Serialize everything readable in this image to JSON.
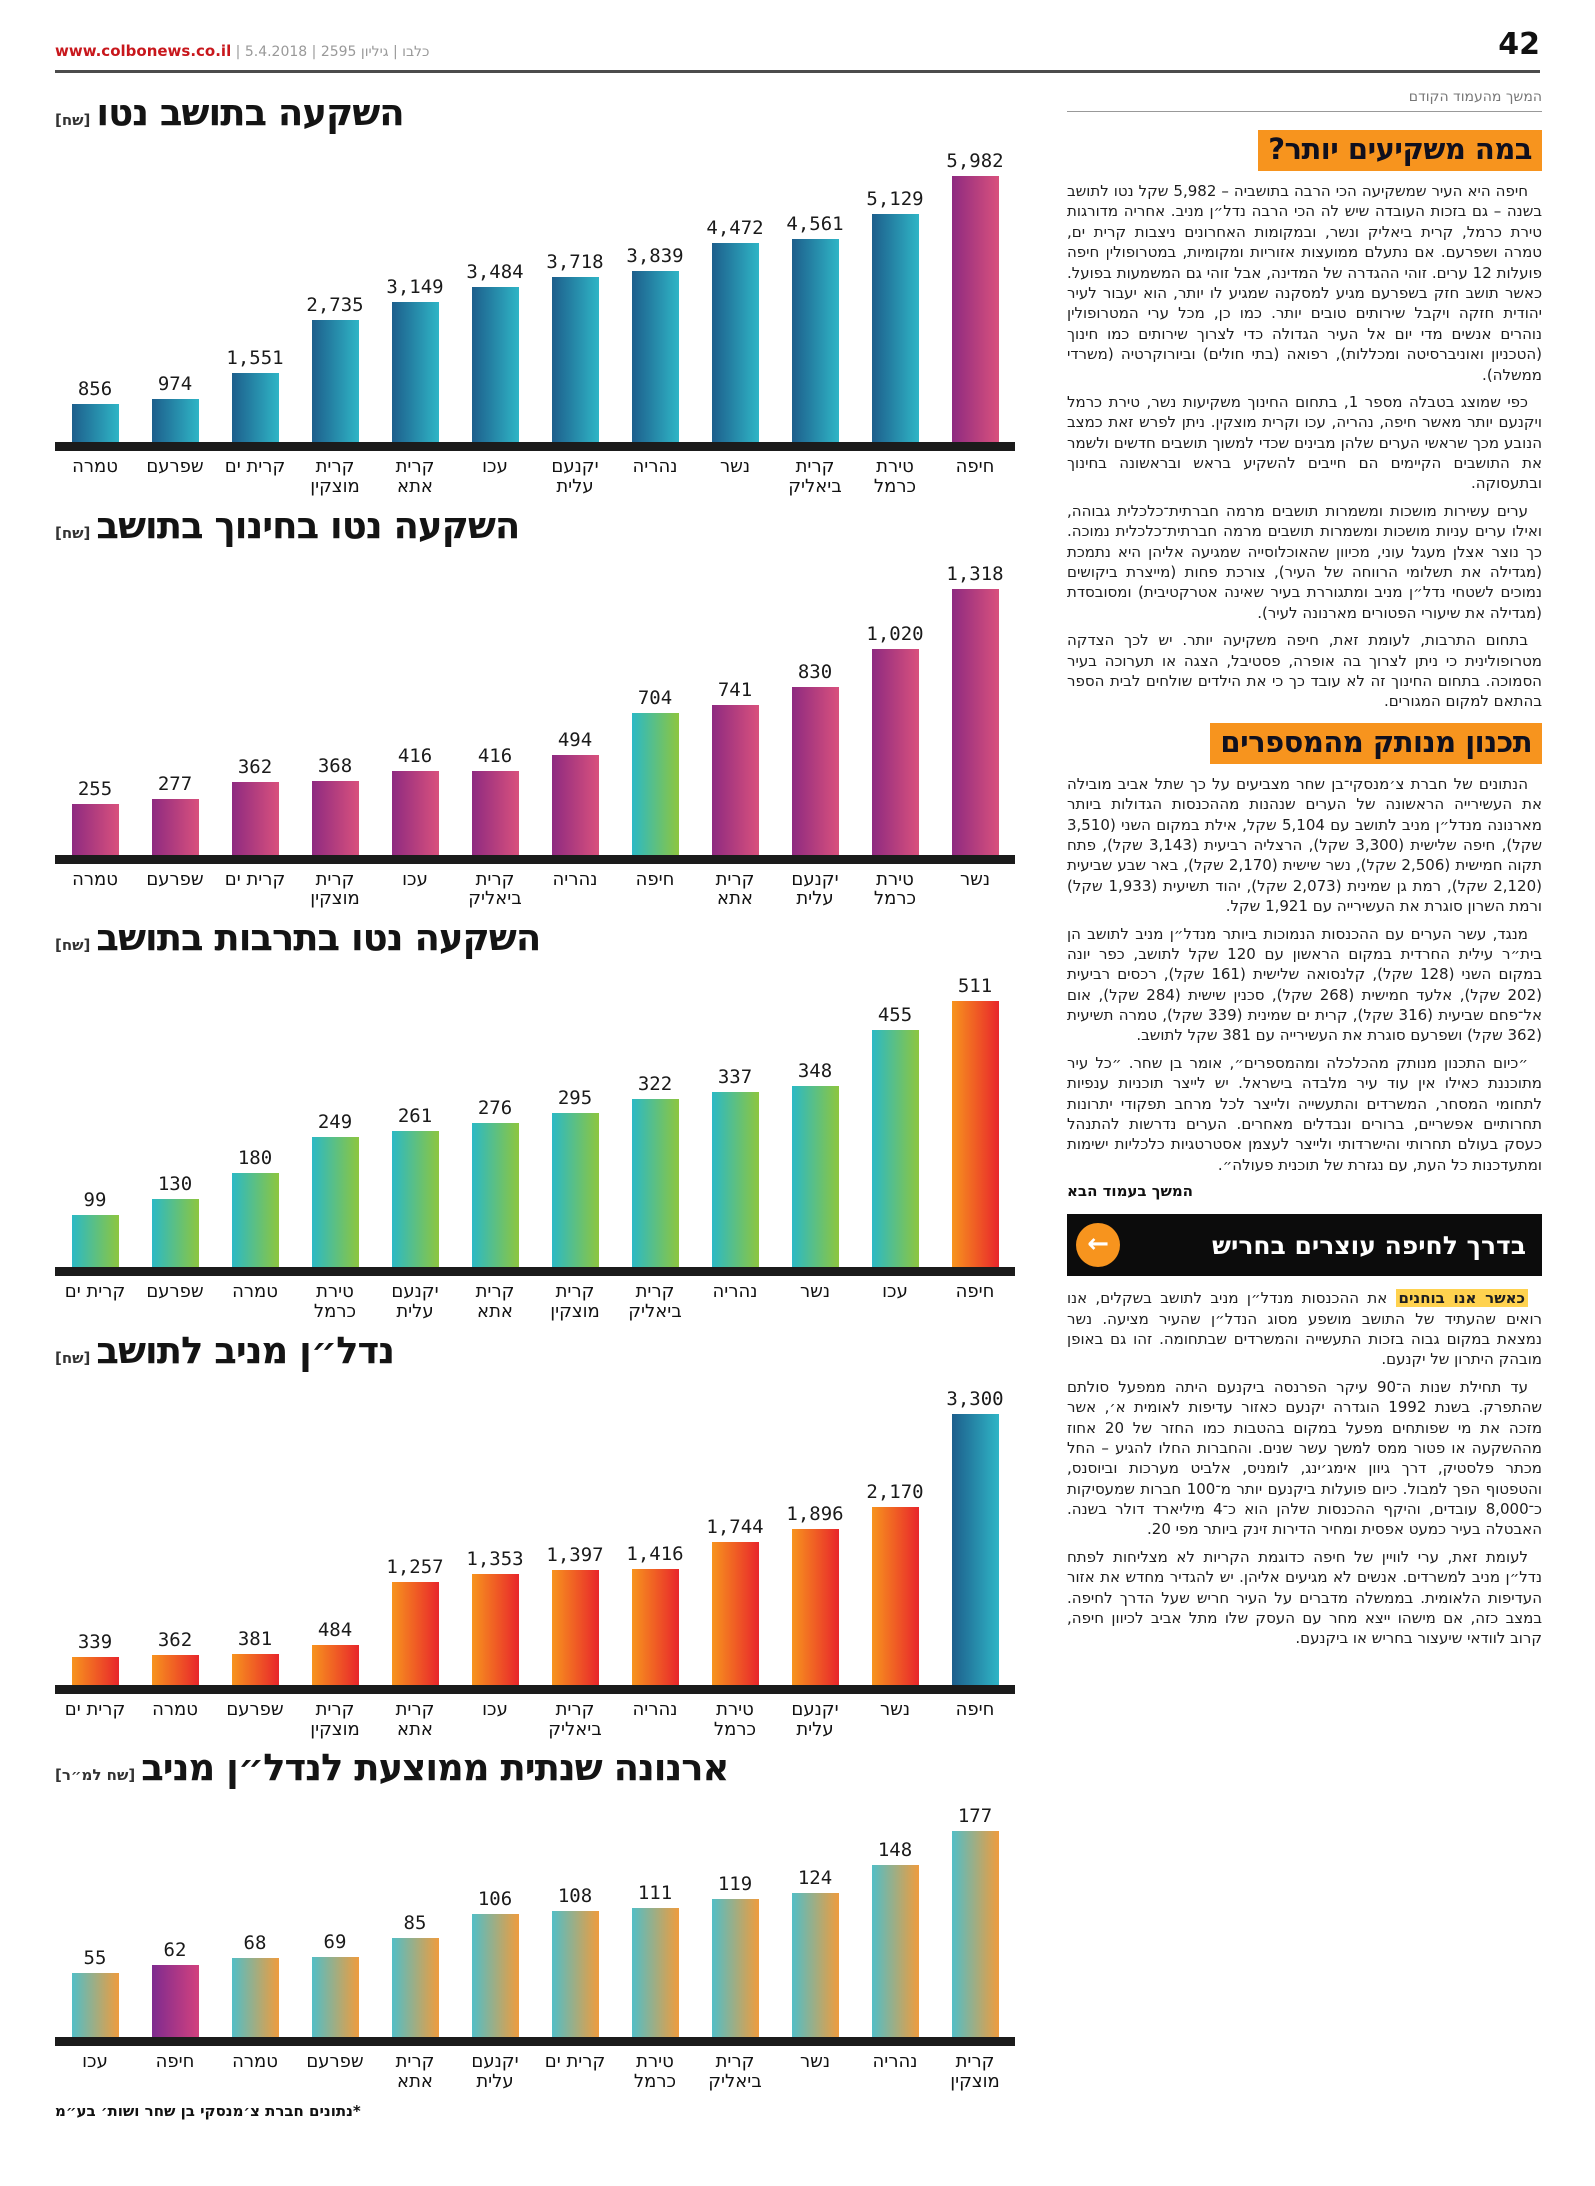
{
  "page": {
    "number": "42",
    "url": "www.colbonews.co.il",
    "meta": " | כלבו | גיליון 2595 | 5.4.2018"
  },
  "colors": {
    "teal": [
      "#1d5e8c",
      "#2fb5c6"
    ],
    "magenta": [
      "#8e2a80",
      "#d9517d"
    ],
    "tealgreen": [
      "#2bb9c5",
      "#8dc63f"
    ],
    "orangered": [
      "#f7941e",
      "#e8262b"
    ],
    "tealorange": [
      "#52bec6",
      "#ef9c3e"
    ],
    "purplepink": [
      "#7e2b8f",
      "#d2417e"
    ],
    "headline_bg": "#f7941e",
    "lead_highlight": "#ffd24f"
  },
  "chart_data": [
    {
      "id": "net-investment-per-resident",
      "type": "bar",
      "title": "השקעה בתושב נטו",
      "unit": "[שח]",
      "categories": [
        "טמרה",
        "שפרעם",
        "קרית ים",
        "קרית מוצקין",
        "קרית אתא",
        "עכו",
        "יקנעם עלית",
        "נהריה",
        "נשר",
        "קרית ביאליק",
        "טירת כרמל",
        "חיפה"
      ],
      "values": [
        856,
        974,
        1551,
        2735,
        3149,
        3484,
        3718,
        3839,
        4472,
        4561,
        5129,
        5982
      ],
      "value_labels": [
        "856",
        "974",
        "1,551",
        "2,735",
        "3,149",
        "3,484",
        "3,718",
        "3,839",
        "4,472",
        "4,561",
        "5,129",
        "5,982"
      ],
      "theme": "teal",
      "highlight_index": 11,
      "highlight_theme": "magenta",
      "ylim": [
        0,
        5982
      ],
      "grid": false,
      "legend": "none"
    },
    {
      "id": "net-education-investment-per-resident",
      "type": "bar",
      "title": "השקעה נטו בחינוך בתושב",
      "unit": "[שח]",
      "categories": [
        "טמרה",
        "שפרעם",
        "קרית ים",
        "קרית מוצקין",
        "עכו",
        "קרית ביאליק",
        "נהריה",
        "חיפה",
        "קרית אתא",
        "יקנעם עלית",
        "טירת כרמל",
        "נשר"
      ],
      "values": [
        255,
        277,
        362,
        368,
        416,
        416,
        494,
        704,
        741,
        830,
        1020,
        1318
      ],
      "value_labels": [
        "255",
        "277",
        "362",
        "368",
        "416",
        "416",
        "494",
        "704",
        "741",
        "830",
        "1,020",
        "1,318"
      ],
      "theme": "magenta",
      "highlight_index": 7,
      "highlight_theme": "tealgreen",
      "ylim": [
        0,
        1318
      ],
      "grid": false,
      "legend": "none"
    },
    {
      "id": "net-culture-investment-per-resident",
      "type": "bar",
      "title": "השקעה נטו בתרבות בתושב",
      "unit": "[שח]",
      "categories": [
        "קרית ים",
        "שפרעם",
        "טמרה",
        "טירת כרמל",
        "יקנעם עלית",
        "קרית אתא",
        "קרית מוצקין",
        "קרית ביאליק",
        "נהריה",
        "נשר",
        "עכו",
        "חיפה"
      ],
      "values": [
        99,
        130,
        180,
        249,
        261,
        276,
        295,
        322,
        337,
        348,
        455,
        511
      ],
      "value_labels": [
        "99",
        "130",
        "180",
        "249",
        "261",
        "276",
        "295",
        "322",
        "337",
        "348",
        "455",
        "511"
      ],
      "theme": "tealgreen",
      "highlight_index": 11,
      "highlight_theme": "orangered",
      "ylim": [
        0,
        511
      ],
      "grid": false,
      "legend": "none"
    },
    {
      "id": "income-producing-real-estate-per-resident",
      "type": "bar",
      "title": "נדל״ן מניב לתושב",
      "unit": "[שח]",
      "categories": [
        "קרית ים",
        "טמרה",
        "שפרעם",
        "קרית מוצקין",
        "קרית אתא",
        "עכו",
        "קרית ביאליק",
        "נהריה",
        "טירת כרמל",
        "יקנעם עלית",
        "נשר",
        "חיפה"
      ],
      "values": [
        339,
        362,
        381,
        484,
        1257,
        1353,
        1397,
        1416,
        1744,
        1896,
        2170,
        3300
      ],
      "value_labels": [
        "339",
        "362",
        "381",
        "484",
        "1,257",
        "1,353",
        "1,397",
        "1,416",
        "1,744",
        "1,896",
        "2,170",
        "3,300"
      ],
      "theme": "orangered",
      "highlight_index": 11,
      "highlight_theme": "teal",
      "ylim": [
        0,
        3300
      ],
      "grid": false,
      "legend": "none"
    },
    {
      "id": "avg-annual-arnona-income-real-estate",
      "type": "bar",
      "title": "ארנונה שנתית ממוצעת לנדל״ן מניב",
      "unit": "[שח למ״ר]",
      "categories": [
        "עכו",
        "חיפה",
        "טמרה",
        "שפרעם",
        "קרית אתא",
        "יקנעם עלית",
        "קרית ים",
        "טירת כרמל",
        "קרית ביאליק",
        "נשר",
        "נהריה",
        "קרית מוצקין"
      ],
      "values": [
        55,
        62,
        68,
        69,
        85,
        106,
        108,
        111,
        119,
        124,
        148,
        177
      ],
      "value_labels": [
        "55",
        "62",
        "68",
        "69",
        "85",
        "106",
        "108",
        "111",
        "119",
        "124",
        "148",
        "177"
      ],
      "theme": "tealorange",
      "highlight_index": 1,
      "highlight_theme": "purplepink",
      "ylim": [
        0,
        177
      ],
      "grid": false,
      "legend": "none"
    }
  ],
  "footnote": "*נתונים חברת צ׳מנסקי בן שחר ושות׳ בע״מ",
  "article": {
    "continued": "המשך מהעמוד הקודם",
    "s1": {
      "headline": "במה משקיעים יותר?",
      "paragraphs": [
        "חיפה היא העיר שמשקיעה הכי הרבה בתושביה – 5,982 שקל נטו לתושב בשנה – גם בזכות העובדה שיש לה הכי הרבה נדל״ן מניב. אחריה מדורגות טירת כרמל, קרית ביאליק ונשר, ובמקומות האחרונים ניצבות קרית ים, טמרה ושפרעם. אם נתעלם ממועצות אזוריות ומקומיות, במטרופולין חיפה פועלות 12 ערים. זוהי ההגדרה של המדינה, אבל זוהי גם המשמעות בפועל. כאשר תושב חזק בשפרעם מגיע למסקנה שמגיע לו יותר, הוא יעבור לעיר יהודית חזקה ויקבל שירותים טובים יותר. כמו כן, מכל ערי המטרופולין נוהרים אנשים מדי יום אל העיר הגדולה כדי לצרוך שירותים כמו חינוך (הטכניון ואוניברסיטה ומכללות), רפואה (בתי חולים) וביורוקרטיה (משרדי ממשלה).",
        "כפי שמוצג בטבלה מספר 1, בתחום החינוך משקיעות נשר, טירת כרמל ויקנעם יותר מאשר חיפה, נהריה, עכו וקרית מוצקין. ניתן לפרש זאת כמצב הנובע מכך שראשי הערים שלהן מבינים שכדי למשוך תושבים חדשים ולשמר את התושבים הקיימים הם חייבים להשקיע בראש ובראשונה בחינוך ובתעסוקה.",
        "ערים עשירות מושכות ומשמרות תושבים מרמה חברתית־כלכלית גבוהה, ואילו ערים עניות מושכות ומשמרות תושבים מרמה חברתית־כלכלית נמוכה. כך נוצר אצלן מעגל עוני, מכיוון שהאוכלוסייה שמגיעה אליהן היא נתמכת (מגדילה את תשלומי הרווחה של העיר), צורכת פחות (מייצרת ביקושים נמוכים לשטחי נדל״ן מניב ומתגוררת בעיר שאינה אטרקטיבית) ומסובסדת (מגדילה את שיעורי הפטורים מארנונה לעיר).",
        "בתחום התרבות, לעומת זאת, חיפה משקיעה יותר. יש לכך הצדקה מטרופולינית כי ניתן לצרוך בה אופרה, פסטיבל, הצגה או תערוכה בעיר הסמוכה. בתחום החינוך זה לא עובד כך כי את הילדים שולחים לבית הספר בהתאם למקום המגורים."
      ]
    },
    "s2": {
      "headline": "תכנון מנותק מהמספרים",
      "paragraphs": [
        "הנתונים של חברת צ׳מנסקי־בן שחר מצביעים על כך שתל אביב מובילה את העשירייה הראשונה של הערים שנהנות מההכנסות הגדולות ביותר מארנונה מנדל״ן מניב לתושב עם 5,104 שקל, אילת במקום השני (3,510 שקל), חיפה שלישית (3,300 שקל), הרצליה רביעית (3,143 שקל), פתח תקוה חמישית (2,506 שקל), נשר שישית (2,170 שקל), באר שבע שביעית (2,120 שקל), רמת גן שמינית (2,073 שקל), יהוד תשיעית (1,933 שקל) ורמת השרון סוגרת את העשירייה עם 1,921 שקל.",
        "מנגד, עשר הערים עם ההכנסות הנמוכות ביותר מנדל״ן מניב לתושב הן בית״ר עילית החרדית במקום הראשון עם 120 שקל לתושב, כפר יונה במקום השני (128 שקל), קלנסואה שלישית (161 שקל), רכסים רביעית (202 שקל), אלעד חמישית (268 שקל), סכנין שישית (284 שקל), אום אל־פחם שביעית (316 שקל), קרית ים שמינית (339 שקל), טמרה תשיעית (362 שקל) ושפרעם סוגרת את העשירייה עם 381 שקל לתושב.",
        "״כיום התכנון מנותק מהכלכלה ומהמספרים״, אומר בן שחר. ״כל עיר מתוכננת כאילו אין עוד עיר מלבדה בישראל. יש לייצר תוכניות ענפיות לתחומי המסחר, המשרדים והתעשייה ולייצר לכל מרחב תפקודי יתרונות תחרותיים אפשריים, ברורים ונבדלים מאחרים. הערים נדרשות להתנהל כעסק בעולם תחרותי והישרדותי ולייצר לעצמן אסטרטגיות כלכליות ישימות ומתעדכנות כל העת, עם נגזרת של תוכנית פעולה״."
      ],
      "continue_note": "המשך בעמוד הבא"
    },
    "callout": {
      "title": "בדרך לחיפה עוצרים בחריש",
      "arrow": "←"
    },
    "s3": {
      "lead": "כאשר אנו בוחנים",
      "paragraphs": [
        "את ההכנסות מנדל״ן מניב לתושב בשקלים, אנו רואים שהעתיד של התושב מושפע מסוג הנדל״ן שהעיר מציעה. נשר נמצאת במקום גבוה בזכות התעשייה והמשרדים שבתחומה. זהו גם באופן מובהק היתרון של יקנעם.",
        "עד תחילת שנות ה־90 עיקר הפרנסה ביקנעם היתה ממפעל סולתם שהתפרק. בשנת 1992 הוגדרה יקנעם כאזור עדיפות לאומית א׳, אשר מזכה את מי שפותחים מפעל במקום בהטבות כמו החזר של 20 אחוז מההשקעה או פטור ממס למשך עשר שנים. והחברות החלו להגיע – החל מכתר פלסטיק, דרך גיוון אימג׳ינג, לומניס, אלביט מערכות וביוסנס, והטפטוף הפך למבול. כיום פועלות ביקנעם יותר מ־100 חברות שמעסיקות כ־8,000 עובדים, והיקף ההכנסות שלהן הוא כ־4 מיליארד דולר בשנה. האבטלה בעיר כמעט אפסית ומחיר הדירות זינק ביותר מפי 20.",
        "לעומת זאת, ערי לוויין של חיפה כדוגמת הקריות לא מצליחות לפתח נדל״ן מניב למשרדים. אנשים לא מגיעים אליהן. יש להגדיר מחדש את אזור העדיפות הלאומית. בממשלה מדברים על העיר חריש שעל הדרך לחיפה. במצב כזה, אם מישהו ייצא מחר עם העסק שלו מתל אביב לכיוון חיפה, קרוב לוודאי שיעצור בחריש או ביקנעם."
      ]
    }
  }
}
